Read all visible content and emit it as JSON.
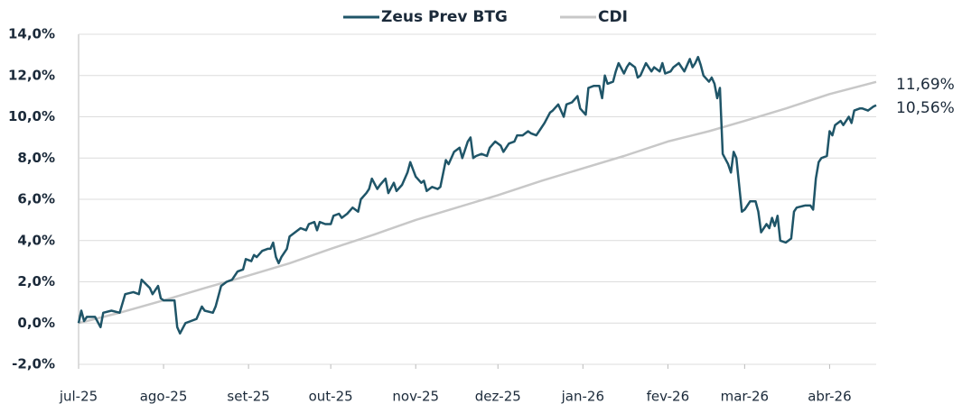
{
  "chart_data": {
    "type": "line",
    "xlim": [
      0,
      291
    ],
    "xticks": [
      {
        "value": 0,
        "label": "jul-25"
      },
      {
        "value": 31,
        "label": "ago-25"
      },
      {
        "value": 62,
        "label": "set-25"
      },
      {
        "value": 92,
        "label": "out-25"
      },
      {
        "value": 123,
        "label": "nov-25"
      },
      {
        "value": 153,
        "label": "dez-25"
      },
      {
        "value": 184,
        "label": "jan-26"
      },
      {
        "value": 215,
        "label": "fev-26"
      },
      {
        "value": 243,
        "label": "mar-26"
      },
      {
        "value": 274,
        "label": "abr-26"
      }
    ],
    "ylim": [
      -2,
      14
    ],
    "yticks": [
      {
        "value": -2,
        "label": "-2,0%"
      },
      {
        "value": 0,
        "label": "0,0%"
      },
      {
        "value": 2,
        "label": "2,0%"
      },
      {
        "value": 4,
        "label": "4,0%"
      },
      {
        "value": 6,
        "label": "6,0%"
      },
      {
        "value": 8,
        "label": "8,0%"
      },
      {
        "value": 10,
        "label": "10,0%"
      },
      {
        "value": 12,
        "label": "12,0%"
      },
      {
        "value": 14,
        "label": "14,0%"
      }
    ],
    "grid": true,
    "legend": "top",
    "series": [
      {
        "name": "Zeus Prev BTG",
        "color": "#1f5568",
        "end_label": "10,56%",
        "x": [
          0,
          1,
          2,
          3,
          6,
          8,
          9,
          12,
          15,
          17,
          20,
          22,
          23,
          26,
          27,
          29,
          30,
          31,
          35,
          36,
          37,
          39,
          41,
          43,
          45,
          46,
          49,
          50,
          52,
          54,
          56,
          58,
          60,
          61,
          63,
          64,
          65,
          67,
          69,
          70,
          71,
          72,
          73,
          74,
          76,
          77,
          79,
          81,
          83,
          84,
          86,
          87,
          88,
          90,
          92,
          93,
          95,
          96,
          98,
          100,
          102,
          103,
          105,
          106,
          107,
          109,
          110,
          112,
          113,
          115,
          116,
          118,
          120,
          121,
          123,
          125,
          126,
          127,
          129,
          131,
          132,
          134,
          135,
          137,
          139,
          140,
          142,
          143,
          144,
          145,
          147,
          149,
          150,
          152,
          154,
          155,
          157,
          159,
          160,
          162,
          164,
          165,
          167,
          168,
          170,
          172,
          173,
          175,
          177,
          178,
          180,
          182,
          183,
          185,
          186,
          188,
          190,
          191,
          192,
          193,
          195,
          196,
          197,
          199,
          200,
          201,
          203,
          204,
          205,
          207,
          209,
          210,
          212,
          213,
          214,
          216,
          217,
          219,
          221,
          223,
          224,
          225,
          226,
          227,
          228,
          230,
          231,
          232,
          233,
          234,
          235,
          237,
          238,
          239,
          240,
          242,
          243,
          245,
          247,
          248,
          249,
          251,
          252,
          253,
          254,
          255,
          256,
          258,
          260,
          261,
          262,
          265,
          267,
          268,
          269,
          270,
          271,
          273,
          274,
          275,
          276,
          278,
          279,
          281,
          282,
          283,
          285,
          286,
          288,
          290,
          291
        ],
        "values": [
          0,
          0.6,
          0.1,
          0.3,
          0.3,
          -0.2,
          0.5,
          0.6,
          0.5,
          1.4,
          1.5,
          1.4,
          2.1,
          1.7,
          1.4,
          1.8,
          1.2,
          1.1,
          1.1,
          -0.2,
          -0.5,
          0,
          0.1,
          0.2,
          0.8,
          0.6,
          0.5,
          0.8,
          1.8,
          2.0,
          2.1,
          2.5,
          2.6,
          3.1,
          3.0,
          3.3,
          3.2,
          3.5,
          3.6,
          3.6,
          3.9,
          3.2,
          2.9,
          3.2,
          3.6,
          4.2,
          4.4,
          4.6,
          4.5,
          4.8,
          4.9,
          4.5,
          4.9,
          4.8,
          4.8,
          5.2,
          5.3,
          5.1,
          5.3,
          5.6,
          5.4,
          6.0,
          6.3,
          6.5,
          7.0,
          6.5,
          6.7,
          7.0,
          6.3,
          6.8,
          6.4,
          6.7,
          7.3,
          7.8,
          7.1,
          6.8,
          6.9,
          6.4,
          6.6,
          6.5,
          6.6,
          7.9,
          7.7,
          8.3,
          8.5,
          8.0,
          8.8,
          9.0,
          8.0,
          8.1,
          8.2,
          8.1,
          8.5,
          8.8,
          8.6,
          8.3,
          8.7,
          8.8,
          9.1,
          9.1,
          9.3,
          9.2,
          9.1,
          9.3,
          9.7,
          10.2,
          10.3,
          10.6,
          10.0,
          10.6,
          10.7,
          11.0,
          10.4,
          10.1,
          11.4,
          11.5,
          11.5,
          10.9,
          12.0,
          11.6,
          11.7,
          12.2,
          12.6,
          12.1,
          12.4,
          12.6,
          12.4,
          11.9,
          12.0,
          12.6,
          12.2,
          12.4,
          12.2,
          12.6,
          12.1,
          12.2,
          12.4,
          12.6,
          12.2,
          12.8,
          12.4,
          12.6,
          12.9,
          12.5,
          12.0,
          11.7,
          11.9,
          11.6,
          10.9,
          11.4,
          8.2,
          7.7,
          7.3,
          8.3,
          8.0,
          5.4,
          5.5,
          5.9,
          5.9,
          5.4,
          4.4,
          4.8,
          4.6,
          5.1,
          4.7,
          5.2,
          4.0,
          3.9,
          4.1,
          5.4,
          5.6,
          5.7,
          5.7,
          5.5,
          7.0,
          7.8,
          8.0,
          8.1,
          9.3,
          9.1,
          9.6,
          9.8,
          9.6,
          10.0,
          9.7,
          10.3,
          10.4,
          10.4,
          10.3,
          10.5,
          10.56
        ]
      },
      {
        "name": "CDI",
        "color": "#c8c8c8",
        "end_label": "11,69%",
        "x": [
          0,
          15,
          31,
          46,
          62,
          77,
          92,
          108,
          123,
          138,
          153,
          169,
          184,
          199,
          215,
          230,
          243,
          258,
          274,
          291
        ],
        "values": [
          0,
          0.5,
          1.1,
          1.7,
          2.3,
          2.9,
          3.6,
          4.3,
          5.0,
          5.6,
          6.2,
          6.9,
          7.5,
          8.1,
          8.8,
          9.3,
          9.8,
          10.4,
          11.1,
          11.69
        ]
      }
    ]
  }
}
